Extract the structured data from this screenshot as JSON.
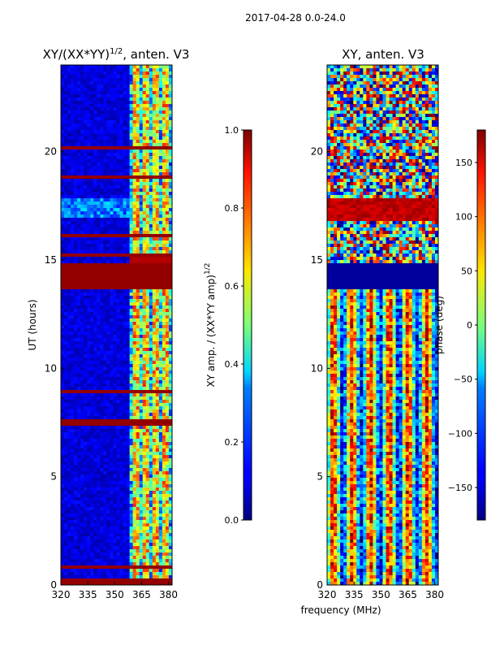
{
  "suptitle": "2017-04-28 0.0-24.0",
  "xlabel_shared": "frequency (MHz)",
  "chart_data": [
    {
      "type": "heatmap",
      "title_prefix": "XY/(XX*YY)",
      "title_exp": "1/2",
      "title_suffix": ", anten. V3",
      "ylabel": "UT (hours)",
      "xlim": [
        320,
        382
      ],
      "ylim": [
        0,
        24
      ],
      "xticks": [
        "320",
        "335",
        "350",
        "365",
        "380"
      ],
      "xtick_values": [
        320,
        335,
        350,
        365,
        380
      ],
      "yticks": [
        "0",
        "5",
        "10",
        "15",
        "20"
      ],
      "ytick_values": [
        0,
        5,
        10,
        15,
        20
      ],
      "colorbar": {
        "label_prefix": "XY amp. / (XX*YY amp)",
        "label_exp": "1/2",
        "range": [
          0.0,
          1.0
        ],
        "ticks": [
          "0.0",
          "0.2",
          "0.4",
          "0.6",
          "0.8",
          "1.0"
        ],
        "tick_values": [
          0.0,
          0.2,
          0.4,
          0.6,
          0.8,
          1.0
        ],
        "colormap": "jet"
      },
      "saturated_hours": [
        [
          0.0,
          0.3
        ],
        [
          0.8,
          0.95
        ],
        [
          7.4,
          7.7
        ],
        [
          8.9,
          9.05
        ],
        [
          13.7,
          14.9
        ],
        [
          15.1,
          15.3
        ],
        [
          16.1,
          16.2
        ],
        [
          18.7,
          18.85
        ],
        [
          20.1,
          20.3
        ]
      ],
      "high_freq_band_mhz": [
        359,
        382
      ]
    },
    {
      "type": "heatmap",
      "title": "XY, anten. V3",
      "ylabel": "",
      "xlim": [
        320,
        382
      ],
      "ylim": [
        0,
        24
      ],
      "xticks": [
        "320",
        "335",
        "350",
        "365",
        "380"
      ],
      "xtick_values": [
        320,
        335,
        350,
        365,
        380
      ],
      "yticks": [
        "0",
        "5",
        "10",
        "15",
        "20"
      ],
      "ytick_values": [
        0,
        5,
        10,
        15,
        20
      ],
      "colorbar": {
        "label": "phase (deg)",
        "range": [
          -180,
          180
        ],
        "ticks": [
          "−150",
          "−100",
          "−50",
          "0",
          "50",
          "100",
          "150"
        ],
        "tick_values": [
          -150,
          -100,
          -50,
          0,
          50,
          100,
          150
        ],
        "colormap": "jet"
      },
      "flagged_hours": [
        [
          13.7,
          14.9
        ]
      ]
    }
  ]
}
